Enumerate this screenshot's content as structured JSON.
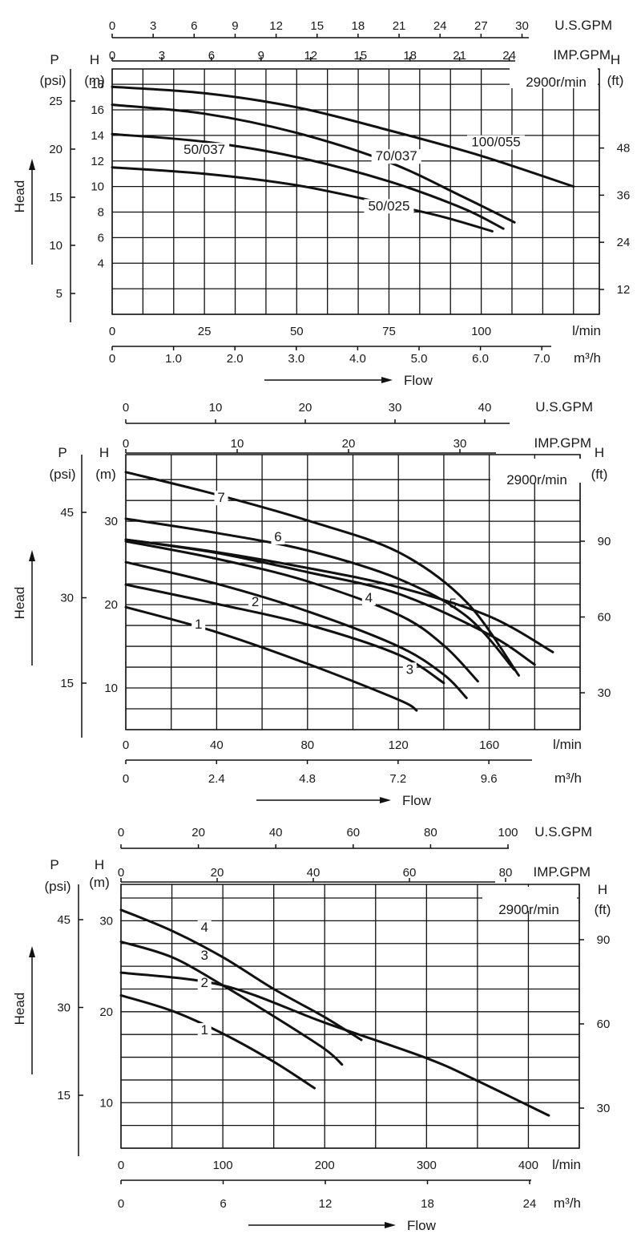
{
  "chart_data": [
    {
      "type": "line",
      "speed_label": "2900r/min",
      "xlabel": "Flow",
      "units": {
        "us_gpm": "U.S.GPM",
        "imp_gpm": "IMP.GPM",
        "lmin": "l/min",
        "m3h": "m³/h",
        "h": "H",
        "h_m": "(m)",
        "h_ft": "(ft)",
        "p": "P",
        "p_psi": "(psi)",
        "head": "Head"
      },
      "xlim_lmin": [
        0,
        132
      ],
      "ylim_m": [
        0,
        19.2
      ],
      "grid_x_lmin": [
        0,
        8.33,
        16.67,
        25,
        33.33,
        41.67,
        50,
        58.33,
        66.67,
        75,
        83.33,
        91.67,
        100,
        108.33,
        116.67,
        125,
        132
      ],
      "grid_y_m": [
        0,
        2,
        4,
        6,
        8,
        10,
        12,
        14,
        16,
        18
      ],
      "ticks_lmin": [
        {
          "v": 0,
          "t": "0"
        },
        {
          "v": 25,
          "t": "25"
        },
        {
          "v": 50,
          "t": "50"
        },
        {
          "v": 75,
          "t": "75"
        },
        {
          "v": 100,
          "t": "100"
        }
      ],
      "ticks_m3h": [
        {
          "v": 0,
          "t": "0"
        },
        {
          "v": 1,
          "t": "1.0"
        },
        {
          "v": 2,
          "t": "2.0"
        },
        {
          "v": 3,
          "t": "3.0"
        },
        {
          "v": 4,
          "t": "4.0"
        },
        {
          "v": 5,
          "t": "5.0"
        },
        {
          "v": 6,
          "t": "6.0"
        },
        {
          "v": 7,
          "t": "7.0"
        }
      ],
      "ticks_us_gpm": [
        {
          "v": 0,
          "t": "0"
        },
        {
          "v": 3,
          "t": "3"
        },
        {
          "v": 6,
          "t": "6"
        },
        {
          "v": 9,
          "t": "9"
        },
        {
          "v": 12,
          "t": "12"
        },
        {
          "v": 15,
          "t": "15"
        },
        {
          "v": 18,
          "t": "18"
        },
        {
          "v": 21,
          "t": "21"
        },
        {
          "v": 24,
          "t": "24"
        },
        {
          "v": 27,
          "t": "27"
        },
        {
          "v": 30,
          "t": "30"
        }
      ],
      "ticks_imp_gpm": [
        {
          "v": 0,
          "t": "0"
        },
        {
          "v": 3,
          "t": "3"
        },
        {
          "v": 6,
          "t": "6"
        },
        {
          "v": 9,
          "t": "9"
        },
        {
          "v": 12,
          "t": "12"
        },
        {
          "v": 15,
          "t": "15"
        },
        {
          "v": 18,
          "t": "18"
        },
        {
          "v": 21,
          "t": "21"
        },
        {
          "v": 24,
          "t": "24"
        }
      ],
      "ticks_h_m": [
        {
          "v": 4,
          "t": "4"
        },
        {
          "v": 6,
          "t": "6"
        },
        {
          "v": 8,
          "t": "8"
        },
        {
          "v": 10,
          "t": "10"
        },
        {
          "v": 12,
          "t": "12"
        },
        {
          "v": 14,
          "t": "14"
        },
        {
          "v": 16,
          "t": "16"
        },
        {
          "v": 18,
          "t": "18"
        }
      ],
      "ticks_h_ft": [
        {
          "v": 12,
          "t": "12"
        },
        {
          "v": 24,
          "t": "24"
        },
        {
          "v": 36,
          "t": "36"
        },
        {
          "v": 48,
          "t": "48"
        }
      ],
      "ticks_p_psi": [
        {
          "v": 5,
          "t": "5"
        },
        {
          "v": 10,
          "t": "10"
        },
        {
          "v": 15,
          "t": "15"
        },
        {
          "v": 20,
          "t": "20"
        },
        {
          "v": 25,
          "t": "25"
        }
      ],
      "series": [
        {
          "name": "50/025",
          "x": [
            0,
            25,
            50,
            75,
            90,
            103
          ],
          "y": [
            11.5,
            11,
            10.1,
            8.6,
            7.6,
            6.5
          ],
          "label_at": [
            75,
            8.2
          ]
        },
        {
          "name": "50/037",
          "x": [
            0,
            25,
            50,
            75,
            95,
            106
          ],
          "y": [
            14.1,
            13.5,
            12.3,
            10.4,
            8.3,
            6.7
          ],
          "label_at": [
            25,
            12.6
          ]
        },
        {
          "name": "70/037",
          "x": [
            0,
            25,
            50,
            75,
            95,
            109
          ],
          "y": [
            16.4,
            15.7,
            14.2,
            11.9,
            9.2,
            7.2
          ],
          "label_at": [
            77,
            12.1
          ]
        },
        {
          "name": "100/055",
          "x": [
            0,
            25,
            50,
            75,
            100,
            125
          ],
          "y": [
            17.8,
            17.3,
            16.2,
            14.4,
            12.4,
            10
          ]
        },
        {
          "name": "",
          "x": [],
          "y": [],
          "label_at": [
            104,
            13.2
          ]
        }
      ],
      "label_100_055": "100/055"
    },
    {
      "type": "line",
      "speed_label": "2900r/min",
      "xlabel": "Flow",
      "units": {
        "us_gpm": "U.S.GPM",
        "imp_gpm": "IMP.GPM",
        "lmin": "l/min",
        "m3h": "m³/h",
        "h": "H",
        "h_m": "(m)",
        "h_ft": "(ft)",
        "p": "P",
        "p_psi": "(psi)",
        "head": "Head"
      },
      "xlim_lmin": [
        0,
        200
      ],
      "ylim_m": [
        5,
        38
      ],
      "grid_x_lmin": [
        0,
        20,
        40,
        60,
        80,
        100,
        120,
        140,
        160,
        180,
        200
      ],
      "grid_y_m": [
        5,
        7.5,
        10,
        12.5,
        15,
        17.5,
        20,
        22.5,
        25,
        27.5,
        30,
        32.5,
        35
      ],
      "ticks_lmin": [
        {
          "v": 0,
          "t": "0"
        },
        {
          "v": 40,
          "t": "40"
        },
        {
          "v": 80,
          "t": "80"
        },
        {
          "v": 120,
          "t": "120"
        },
        {
          "v": 160,
          "t": "160"
        }
      ],
      "ticks_m3h": [
        {
          "v": 0,
          "t": "0"
        },
        {
          "v": 2.4,
          "t": "2.4"
        },
        {
          "v": 4.8,
          "t": "4.8"
        },
        {
          "v": 7.2,
          "t": "7.2"
        },
        {
          "v": 9.6,
          "t": "9.6"
        }
      ],
      "ticks_us_gpm": [
        {
          "v": 0,
          "t": "0"
        },
        {
          "v": 10,
          "t": "10"
        },
        {
          "v": 20,
          "t": "20"
        },
        {
          "v": 30,
          "t": "30"
        },
        {
          "v": 40,
          "t": "40"
        }
      ],
      "ticks_imp_gpm": [
        {
          "v": 0,
          "t": "0"
        },
        {
          "v": 10,
          "t": "10"
        },
        {
          "v": 20,
          "t": "20"
        },
        {
          "v": 30,
          "t": "30"
        }
      ],
      "ticks_h_m": [
        {
          "v": 10,
          "t": "10"
        },
        {
          "v": 20,
          "t": "20"
        },
        {
          "v": 30,
          "t": "30"
        }
      ],
      "ticks_h_ft": [
        {
          "v": 30,
          "t": "30"
        },
        {
          "v": 60,
          "t": "60"
        },
        {
          "v": 90,
          "t": "90"
        }
      ],
      "ticks_p_psi": [
        {
          "v": 15,
          "t": "15"
        },
        {
          "v": 30,
          "t": "30"
        },
        {
          "v": 45,
          "t": "45"
        }
      ],
      "series": [
        {
          "name": "1",
          "x": [
            0,
            40,
            80,
            120,
            128
          ],
          "y": [
            19.7,
            16.7,
            12.9,
            8.6,
            7.3
          ],
          "label_at": [
            32,
            17.2
          ]
        },
        {
          "name": "2",
          "x": [
            0,
            40,
            80,
            120,
            140
          ],
          "y": [
            22.4,
            20.1,
            17.6,
            14,
            10.6
          ],
          "label_at": [
            57,
            19.9
          ]
        },
        {
          "name": "3",
          "x": [
            0,
            40,
            80,
            120,
            140,
            150
          ],
          "y": [
            25.1,
            22.5,
            19.2,
            15,
            11.6,
            8.8
          ],
          "label_at": [
            125,
            11.8
          ]
        },
        {
          "name": "4",
          "x": [
            0,
            40,
            80,
            120,
            140,
            155
          ],
          "y": [
            27.6,
            25.5,
            22.8,
            18.8,
            15.1,
            10.8
          ],
          "label_at": [
            107,
            20.4
          ]
        },
        {
          "name": "5",
          "x": [
            0,
            40,
            80,
            120,
            160,
            180
          ],
          "y": [
            27.8,
            26.2,
            23.9,
            21.3,
            16.4,
            12.8
          ],
          "label_at": [
            144,
            19.7
          ]
        },
        {
          "name": "6",
          "x": [
            0,
            40,
            80,
            120,
            150,
            171
          ],
          "y": [
            30.3,
            28.6,
            26.5,
            23.1,
            18.6,
            12.2
          ],
          "label_at": [
            67,
            27.7
          ]
        },
        {
          "name": "7",
          "x": [
            0,
            40,
            80,
            120,
            150,
            173
          ],
          "y": [
            35.9,
            33.2,
            30.1,
            26.3,
            20.3,
            11.5
          ],
          "label_at": [
            42,
            32.4
          ]
        },
        {
          "name": "",
          "x": [
            0,
            40,
            80,
            120,
            160,
            188
          ],
          "y": [
            27.8,
            26.3,
            24.4,
            22.1,
            18.6,
            14.3
          ]
        }
      ]
    },
    {
      "type": "line",
      "speed_label": "2900r/min",
      "xlabel": "Flow",
      "units": {
        "us_gpm": "U.S.GPM",
        "imp_gpm": "IMP.GPM",
        "lmin": "l/min",
        "m3h": "m³/h",
        "h": "H",
        "h_m": "(m)",
        "h_ft": "(ft)",
        "p": "P",
        "p_psi": "(psi)",
        "head": "Head"
      },
      "xlim_lmin": [
        0,
        450
      ],
      "ylim_m": [
        5,
        34
      ],
      "grid_x_lmin": [
        0,
        50,
        100,
        150,
        200,
        250,
        300,
        350,
        400,
        450
      ],
      "grid_y_m": [
        5,
        7.5,
        10,
        12.5,
        15,
        17.5,
        20,
        22.5,
        25,
        27.5,
        30,
        32.5
      ],
      "ticks_lmin": [
        {
          "v": 0,
          "t": "0"
        },
        {
          "v": 100,
          "t": "100"
        },
        {
          "v": 200,
          "t": "200"
        },
        {
          "v": 300,
          "t": "300"
        },
        {
          "v": 400,
          "t": "400"
        }
      ],
      "ticks_m3h": [
        {
          "v": 0,
          "t": "0"
        },
        {
          "v": 6,
          "t": "6"
        },
        {
          "v": 12,
          "t": "12"
        },
        {
          "v": 18,
          "t": "18"
        },
        {
          "v": 24,
          "t": "24"
        }
      ],
      "ticks_us_gpm": [
        {
          "v": 0,
          "t": "0"
        },
        {
          "v": 20,
          "t": "20"
        },
        {
          "v": 40,
          "t": "40"
        },
        {
          "v": 60,
          "t": "60"
        },
        {
          "v": 80,
          "t": "80"
        },
        {
          "v": 100,
          "t": "100"
        }
      ],
      "ticks_imp_gpm": [
        {
          "v": 0,
          "t": "0"
        },
        {
          "v": 20,
          "t": "20"
        },
        {
          "v": 40,
          "t": "40"
        },
        {
          "v": 60,
          "t": "60"
        },
        {
          "v": 80,
          "t": "80"
        }
      ],
      "ticks_h_m": [
        {
          "v": 10,
          "t": "10"
        },
        {
          "v": 20,
          "t": "20"
        },
        {
          "v": 30,
          "t": "30"
        }
      ],
      "ticks_h_ft": [
        {
          "v": 30,
          "t": "30"
        },
        {
          "v": 60,
          "t": "60"
        },
        {
          "v": 90,
          "t": "90"
        }
      ],
      "ticks_p_psi": [
        {
          "v": 15,
          "t": "15"
        },
        {
          "v": 30,
          "t": "30"
        },
        {
          "v": 45,
          "t": "45"
        }
      ],
      "series": [
        {
          "name": "1",
          "x": [
            0,
            50,
            100,
            150,
            190
          ],
          "y": [
            21.8,
            20.1,
            17.6,
            14.5,
            11.6
          ],
          "label_at": [
            82,
            17.6
          ]
        },
        {
          "name": "2",
          "x": [
            0,
            100,
            200,
            300,
            350,
            420
          ],
          "y": [
            24.3,
            22.9,
            18.8,
            14.9,
            12.4,
            8.6
          ],
          "label_at": [
            82,
            22.8
          ]
        },
        {
          "name": "3",
          "x": [
            0,
            50,
            100,
            150,
            200,
            217
          ],
          "y": [
            27.7,
            26,
            22.9,
            19.5,
            15.9,
            14.2
          ],
          "label_at": [
            82,
            25.8
          ]
        },
        {
          "name": "4",
          "x": [
            0,
            50,
            100,
            150,
            200,
            236
          ],
          "y": [
            31.2,
            28.9,
            26,
            22.5,
            19.4,
            16.9
          ],
          "label_at": [
            82,
            28.9
          ]
        }
      ]
    }
  ]
}
